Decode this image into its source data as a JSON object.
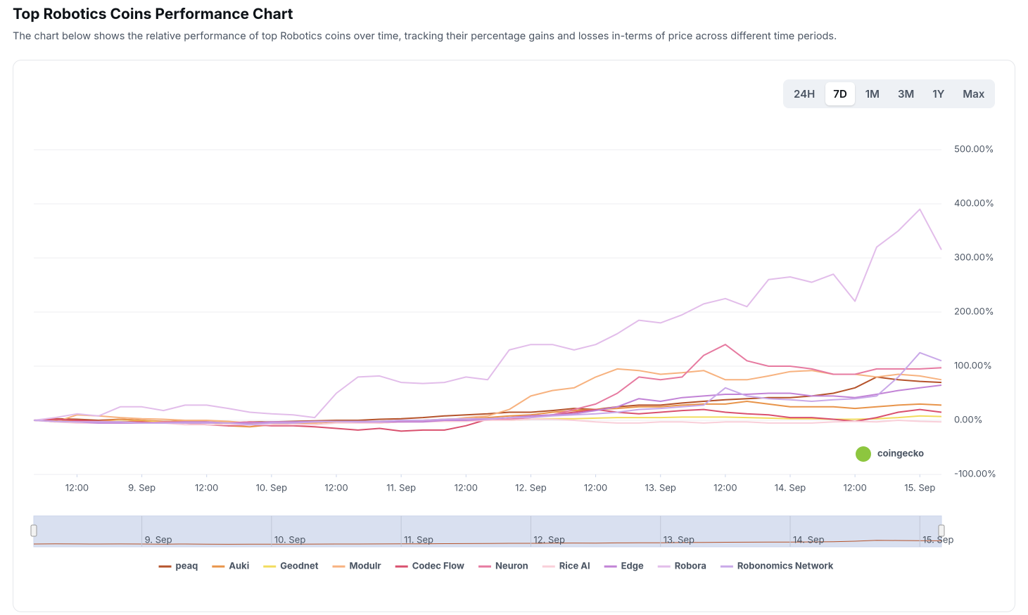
{
  "header": {
    "title": "Top Robotics Coins Performance Chart",
    "subtitle": "The chart below shows the relative performance of top Robotics coins over time, tracking their percentage gains and losses in-terms of price across different time periods."
  },
  "range_buttons": [
    "24H",
    "7D",
    "1M",
    "3M",
    "1Y",
    "Max"
  ],
  "selected_range": "7D",
  "watermark": "coingecko",
  "chart_data": {
    "type": "line",
    "x": [
      "8. Sep 04:00",
      "8. Sep 08:00",
      "8. Sep 12:00",
      "8. Sep 16:00",
      "8. Sep 20:00",
      "9. Sep 00:00",
      "9. Sep 04:00",
      "9. Sep 08:00",
      "9. Sep 12:00",
      "9. Sep 16:00",
      "9. Sep 20:00",
      "10. Sep 00:00",
      "10. Sep 04:00",
      "10. Sep 08:00",
      "10. Sep 12:00",
      "10. Sep 16:00",
      "10. Sep 20:00",
      "11. Sep 00:00",
      "11. Sep 04:00",
      "11. Sep 08:00",
      "11. Sep 12:00",
      "11. Sep 16:00",
      "11. Sep 20:00",
      "12. Sep 00:00",
      "12. Sep 04:00",
      "12. Sep 08:00",
      "12. Sep 12:00",
      "12. Sep 16:00",
      "12. Sep 20:00",
      "13. Sep 00:00",
      "13. Sep 04:00",
      "13. Sep 08:00",
      "13. Sep 12:00",
      "13. Sep 16:00",
      "13. Sep 20:00",
      "14. Sep 00:00",
      "14. Sep 04:00",
      "14. Sep 08:00",
      "14. Sep 12:00",
      "14. Sep 16:00",
      "14. Sep 20:00",
      "15. Sep 00:00",
      "15. Sep 04:00"
    ],
    "xticks": [
      {
        "value": "8. Sep 12:00",
        "label": "12:00"
      },
      {
        "value": "9. Sep 00:00",
        "label": "9. Sep"
      },
      {
        "value": "9. Sep 12:00",
        "label": "12:00"
      },
      {
        "value": "10. Sep 00:00",
        "label": "10. Sep"
      },
      {
        "value": "10. Sep 12:00",
        "label": "12:00"
      },
      {
        "value": "11. Sep 00:00",
        "label": "11. Sep"
      },
      {
        "value": "11. Sep 12:00",
        "label": "12:00"
      },
      {
        "value": "12. Sep 00:00",
        "label": "12. Sep"
      },
      {
        "value": "12. Sep 12:00",
        "label": "12:00"
      },
      {
        "value": "13. Sep 00:00",
        "label": "13. Sep"
      },
      {
        "value": "13. Sep 12:00",
        "label": "12:00"
      },
      {
        "value": "14. Sep 00:00",
        "label": "14. Sep"
      },
      {
        "value": "14. Sep 12:00",
        "label": "12:00"
      },
      {
        "value": "15. Sep 00:00",
        "label": "15. Sep"
      }
    ],
    "ylim": [
      -100,
      500
    ],
    "yticks": [
      {
        "value": 500,
        "label": "500.00%"
      },
      {
        "value": 400,
        "label": "400.00%"
      },
      {
        "value": 300,
        "label": "300.00%"
      },
      {
        "value": 200,
        "label": "200.00%"
      },
      {
        "value": 100,
        "label": "100.00%"
      },
      {
        "value": 0,
        "label": "0.00%"
      },
      {
        "value": -100,
        "label": "-100.00%"
      }
    ],
    "grid": true,
    "series": [
      {
        "name": "peaq",
        "color": "#b5532b",
        "values": [
          0,
          3,
          2,
          0,
          2,
          0,
          -3,
          0,
          -3,
          -5,
          -3,
          -3,
          -2,
          -1,
          0,
          0,
          2,
          3,
          5,
          8,
          10,
          12,
          15,
          15,
          18,
          22,
          20,
          25,
          28,
          28,
          32,
          35,
          38,
          40,
          42,
          42,
          45,
          50,
          60,
          80,
          75,
          72,
          70
        ]
      },
      {
        "name": "Auki",
        "color": "#e8944a",
        "values": [
          0,
          0,
          -2,
          -2,
          2,
          0,
          -2,
          -2,
          -3,
          -10,
          -12,
          -8,
          -5,
          -5,
          -3,
          -3,
          -2,
          0,
          0,
          2,
          3,
          5,
          8,
          10,
          15,
          18,
          20,
          22,
          25,
          25,
          28,
          30,
          30,
          35,
          30,
          25,
          25,
          25,
          22,
          25,
          28,
          30,
          28
        ]
      },
      {
        "name": "Geodnet",
        "color": "#f2dc5d",
        "values": [
          0,
          -2,
          -3,
          -3,
          -2,
          -2,
          -3,
          -3,
          -3,
          -4,
          -5,
          -5,
          -4,
          -3,
          -2,
          -2,
          -3,
          -2,
          -2,
          -1,
          0,
          0,
          0,
          2,
          3,
          3,
          4,
          5,
          5,
          5,
          6,
          6,
          6,
          5,
          4,
          3,
          3,
          2,
          2,
          3,
          5,
          8,
          7
        ]
      },
      {
        "name": "Modulr",
        "color": "#f7b27f",
        "values": [
          0,
          -3,
          10,
          8,
          5,
          3,
          2,
          0,
          0,
          -2,
          -5,
          -3,
          -3,
          -5,
          -2,
          -3,
          -5,
          -3,
          -2,
          0,
          5,
          8,
          20,
          45,
          55,
          60,
          80,
          95,
          92,
          85,
          88,
          92,
          75,
          75,
          82,
          90,
          92,
          85,
          85,
          80,
          85,
          82,
          75
        ]
      },
      {
        "name": "Codec Flow",
        "color": "#d9506e",
        "values": [
          0,
          2,
          0,
          -2,
          -3,
          -3,
          -5,
          -5,
          -8,
          -10,
          -8,
          -10,
          -10,
          -12,
          -15,
          -18,
          -15,
          -20,
          -18,
          -18,
          -10,
          2,
          5,
          8,
          10,
          15,
          20,
          15,
          12,
          15,
          18,
          20,
          15,
          12,
          10,
          5,
          5,
          2,
          -2,
          5,
          15,
          20,
          15
        ]
      },
      {
        "name": "Neuron",
        "color": "#e67aa0",
        "values": [
          0,
          -2,
          -3,
          -2,
          -3,
          -5,
          -3,
          -3,
          -5,
          -5,
          -3,
          -5,
          -5,
          -3,
          -2,
          -3,
          -3,
          -2,
          -2,
          -2,
          0,
          0,
          2,
          5,
          10,
          20,
          30,
          50,
          80,
          75,
          80,
          120,
          140,
          110,
          100,
          100,
          95,
          85,
          85,
          95,
          95,
          95,
          97
        ]
      },
      {
        "name": "Rice AI",
        "color": "#f9cfd9",
        "values": [
          0,
          -3,
          -5,
          -5,
          -5,
          -5,
          -5,
          -8,
          -8,
          -8,
          -8,
          -8,
          -8,
          -8,
          -5,
          -5,
          -5,
          -3,
          -3,
          -2,
          -2,
          0,
          0,
          2,
          2,
          0,
          -3,
          -5,
          -5,
          -3,
          -3,
          -5,
          -3,
          -3,
          -5,
          -5,
          -5,
          -3,
          -2,
          -3,
          0,
          -2,
          -3
        ]
      },
      {
        "name": "Edge",
        "color": "#c283d6",
        "values": [
          0,
          -2,
          -3,
          -5,
          -5,
          -5,
          -5,
          -3,
          -3,
          -5,
          -5,
          -3,
          -3,
          -2,
          -2,
          -3,
          -3,
          -3,
          -3,
          0,
          0,
          2,
          5,
          8,
          10,
          12,
          18,
          25,
          40,
          35,
          42,
          45,
          48,
          48,
          50,
          50,
          45,
          45,
          42,
          48,
          55,
          60,
          65
        ]
      },
      {
        "name": "Robora",
        "color": "#e2bdea",
        "values": [
          0,
          5,
          12,
          8,
          25,
          25,
          18,
          28,
          28,
          22,
          15,
          12,
          10,
          5,
          50,
          80,
          82,
          70,
          68,
          70,
          80,
          75,
          130,
          140,
          140,
          130,
          140,
          160,
          185,
          180,
          195,
          215,
          225,
          210,
          260,
          265,
          255,
          270,
          220,
          320,
          350,
          390,
          315
        ]
      },
      {
        "name": "Robonomics Network",
        "color": "#c9a8e8",
        "values": [
          0,
          -2,
          -3,
          -3,
          -3,
          -5,
          -5,
          -5,
          -5,
          -5,
          -8,
          -5,
          -5,
          -3,
          -2,
          -2,
          -2,
          0,
          0,
          2,
          3,
          3,
          5,
          5,
          8,
          10,
          12,
          15,
          20,
          22,
          25,
          28,
          60,
          45,
          40,
          38,
          35,
          38,
          40,
          45,
          80,
          125,
          110
        ]
      }
    ]
  }
}
